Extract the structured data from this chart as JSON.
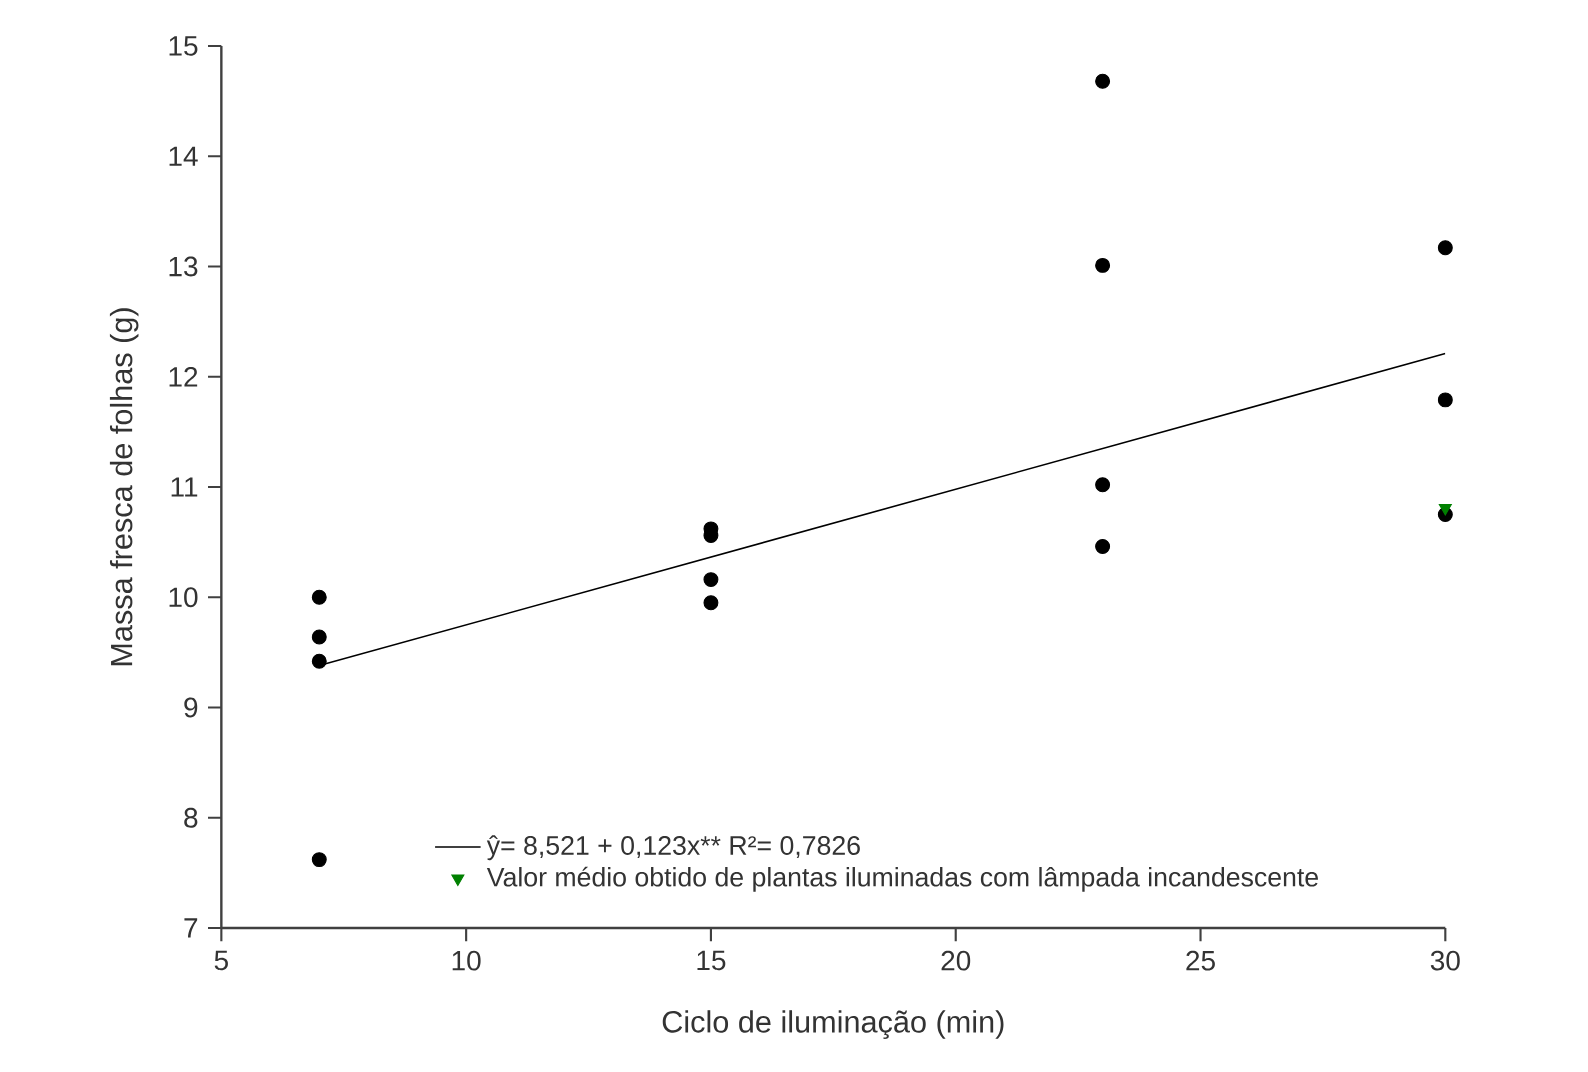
{
  "chart_data": {
    "type": "scatter",
    "xlabel": "Ciclo de iluminação (min)",
    "ylabel": "Massa fresca de folhas (g)",
    "xlim": [
      5,
      30
    ],
    "xticks": [
      5,
      10,
      15,
      20,
      25,
      30
    ],
    "ylim": [
      7,
      15
    ],
    "yticks": [
      7,
      8,
      9,
      10,
      11,
      12,
      13,
      14,
      15
    ],
    "grid": false,
    "legend": "bottom",
    "series": [
      {
        "color": "#000000",
        "marker": "circle",
        "x": [
          7,
          7,
          7,
          7,
          15,
          15,
          15,
          15,
          23,
          23,
          23,
          23,
          30,
          30,
          30
        ],
        "values": [
          10.0,
          9.64,
          9.42,
          7.62,
          10.62,
          10.56,
          10.16,
          9.95,
          14.68,
          13.01,
          11.02,
          10.46,
          13.17,
          11.79,
          10.75
        ]
      },
      {
        "type": "line",
        "name": "ŷ= 8,521 + 0,123x**     R²= 0,7826",
        "color": "#000000",
        "marker": "none",
        "line_style": "solid",
        "x": [
          7,
          30
        ],
        "values": [
          9.38,
          12.21
        ]
      },
      {
        "name": "Valor médio obtido de plantas iluminadas com lâmpada incandescente",
        "color": "#008000",
        "marker": "triangle",
        "x": [
          30
        ],
        "values": [
          10.81
        ]
      }
    ]
  }
}
